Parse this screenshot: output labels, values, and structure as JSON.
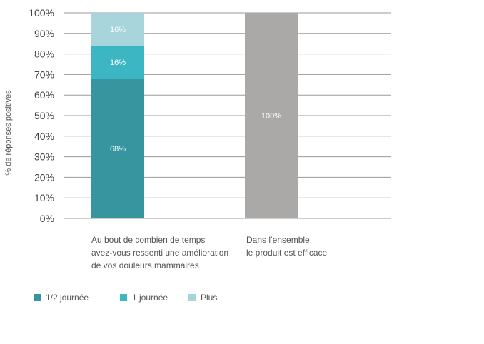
{
  "chart_data": {
    "type": "bar",
    "stacked": true,
    "ylabel": "% de réponses positives",
    "ylim": [
      0,
      100
    ],
    "yticks": [
      "0%",
      "10%",
      "20%",
      "30%",
      "40%",
      "50%",
      "60%",
      "70%",
      "80%",
      "90%",
      "100%"
    ],
    "grid": true,
    "legend_position": "bottom-left",
    "categories": [
      [
        "Au bout de combien de temps",
        "avez-vous ressenti une amélioration",
        "de vos douleurs mammaires"
      ],
      [
        "Dans l’ensemble,",
        "le produit est efficace"
      ]
    ],
    "series": [
      {
        "name": "1/2 journée",
        "color": "#36959f",
        "values": [
          68,
          null
        ],
        "labels": [
          "68%",
          ""
        ]
      },
      {
        "name": "1 journée",
        "color": "#3cb6c2",
        "values": [
          16,
          null
        ],
        "labels": [
          "16%",
          ""
        ]
      },
      {
        "name": "Plus",
        "color": "#a8d5dc",
        "values": [
          16,
          null
        ],
        "labels": [
          "16%",
          ""
        ]
      },
      {
        "color": "#aaa9a7",
        "values": [
          null,
          100
        ],
        "labels": [
          "",
          "100%"
        ]
      }
    ]
  }
}
